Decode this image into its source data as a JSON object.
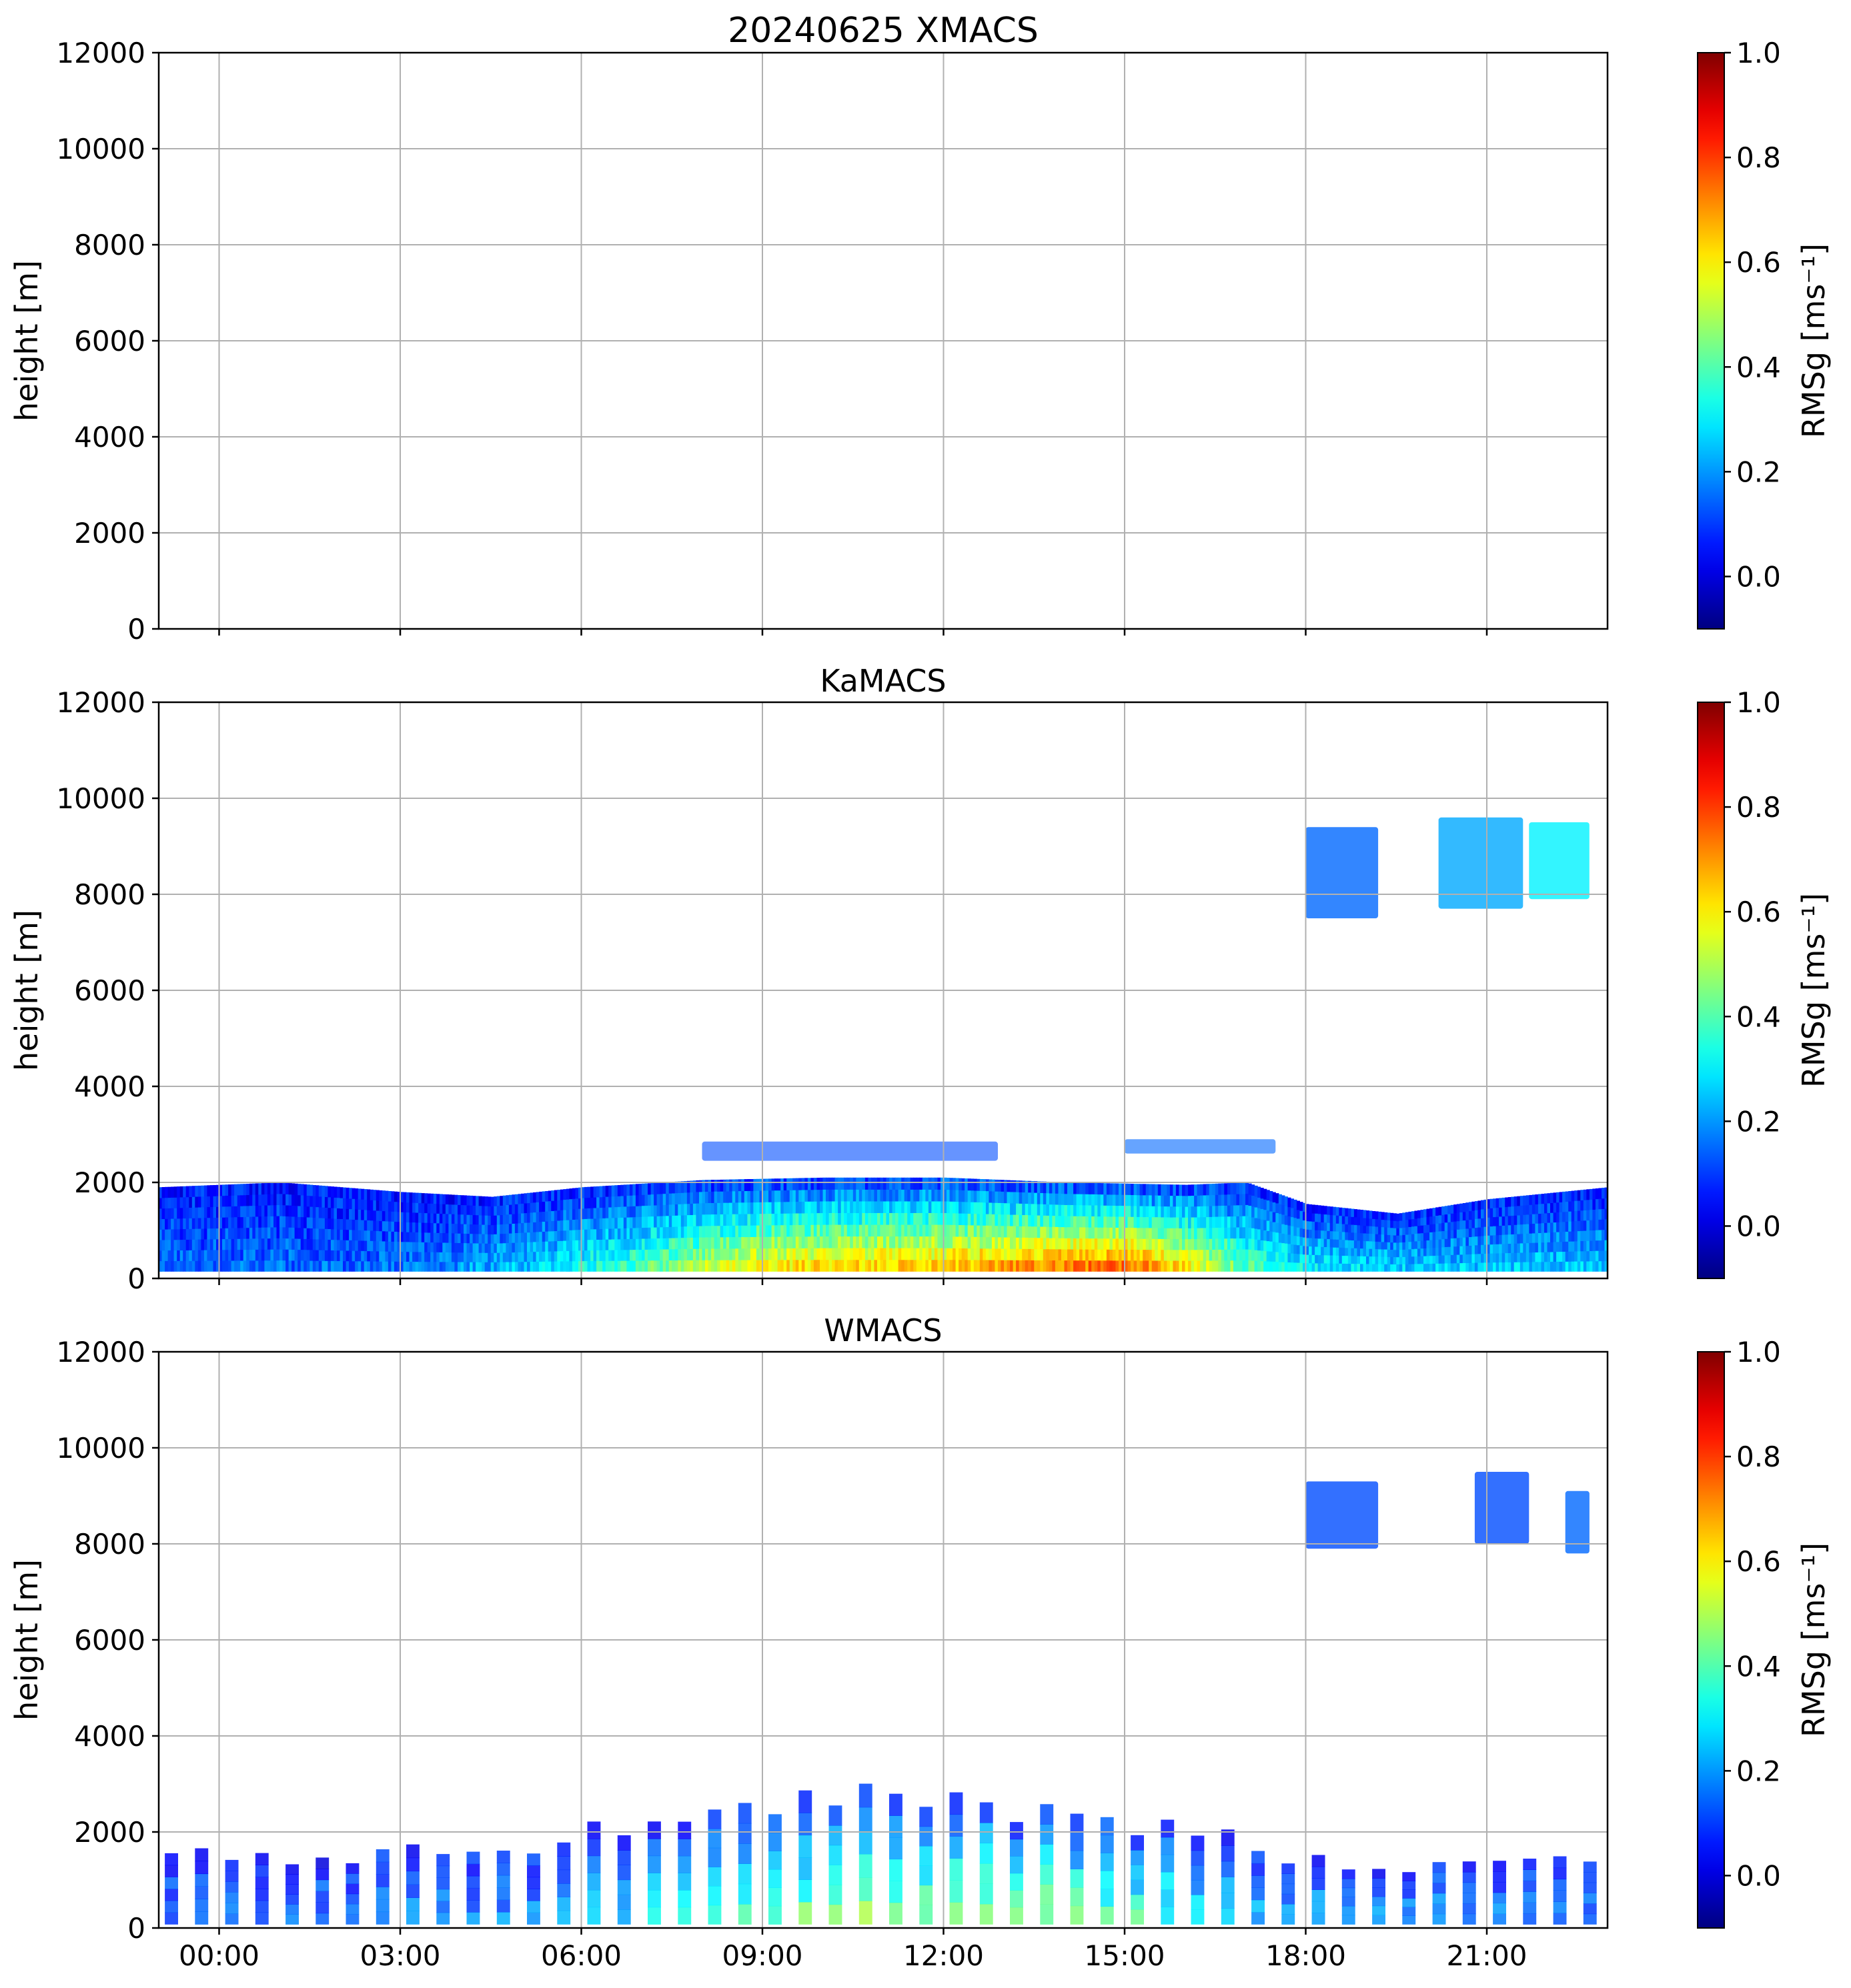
{
  "figure_title_date": "20240625",
  "chart_data": [
    {
      "type": "heatmap",
      "title": "20240625 XMACS",
      "ylabel": "height [m]",
      "xlim": [
        -1,
        23
      ],
      "ylim": [
        0,
        12000
      ],
      "x_ticks": [
        0,
        3,
        6,
        9,
        12,
        15,
        18,
        21
      ],
      "x_tick_labels": [],
      "y_ticks": [
        0,
        2000,
        4000,
        6000,
        8000,
        10000,
        12000
      ],
      "y_tick_labels": [
        "0",
        "2000",
        "4000",
        "6000",
        "8000",
        "10000",
        "12000"
      ],
      "grid": true,
      "colorbar": {
        "label": "RMSg [ms⁻¹]",
        "cmap": "jet",
        "range": [
          -0.1,
          1.0
        ],
        "ticks": [
          0.0,
          0.2,
          0.4,
          0.6,
          0.8,
          1.0
        ],
        "tick_labels": [
          "0.0",
          "0.2",
          "0.4",
          "0.6",
          "0.8",
          "1.0"
        ]
      },
      "echo_regions": []
    },
    {
      "type": "heatmap",
      "title": "KaMACS",
      "ylabel": "height [m]",
      "xlim": [
        -1,
        23
      ],
      "ylim": [
        0,
        12000
      ],
      "x_ticks": [
        0,
        3,
        6,
        9,
        12,
        15,
        18,
        21
      ],
      "x_tick_labels": [],
      "y_ticks": [
        0,
        2000,
        4000,
        6000,
        8000,
        10000,
        12000
      ],
      "y_tick_labels": [
        "0",
        "2000",
        "4000",
        "6000",
        "8000",
        "10000",
        "12000"
      ],
      "grid": true,
      "colorbar": {
        "label": "RMSg [ms⁻¹]",
        "cmap": "jet",
        "range": [
          -0.1,
          1.0
        ],
        "ticks": [
          0.0,
          0.2,
          0.4,
          0.6,
          0.8,
          1.0
        ],
        "tick_labels": [
          "0.0",
          "0.2",
          "0.4",
          "0.6",
          "0.8",
          "1.0"
        ]
      },
      "echo_regions": [
        {
          "kind": "boundary_layer",
          "x_start": -1.0,
          "x_end": 23.0,
          "top_profile": [
            [
              -1,
              1900
            ],
            [
              1,
              2000
            ],
            [
              3,
              1800
            ],
            [
              4.5,
              1700
            ],
            [
              6,
              1900
            ],
            [
              8,
              2050
            ],
            [
              10,
              2100
            ],
            [
              12,
              2100
            ],
            [
              14,
              2000
            ],
            [
              16,
              1950
            ],
            [
              17,
              2000
            ],
            [
              18,
              1550
            ],
            [
              19.5,
              1350
            ],
            [
              21,
              1650
            ],
            [
              23,
              1900
            ]
          ],
          "rmsg_profile": [
            [
              -1,
              0.1
            ],
            [
              3,
              0.1
            ],
            [
              5,
              0.2
            ],
            [
              7,
              0.35
            ],
            [
              9,
              0.55
            ],
            [
              12,
              0.6
            ],
            [
              15,
              0.7
            ],
            [
              16,
              0.55
            ],
            [
              17,
              0.35
            ],
            [
              18,
              0.25
            ],
            [
              20,
              0.2
            ],
            [
              23,
              0.2
            ]
          ]
        },
        {
          "kind": "elevated_layer",
          "x_start": 8.0,
          "x_end": 12.9,
          "y_bottom": 2450,
          "y_top": 2850,
          "rmsg": 0.12
        },
        {
          "kind": "elevated_layer",
          "x_start": 15.0,
          "x_end": 17.5,
          "y_bottom": 2600,
          "y_top": 2900,
          "rmsg": 0.15
        },
        {
          "kind": "cirrus",
          "x_start": 18.0,
          "x_end": 19.2,
          "y_bottom": 7500,
          "y_top": 9400,
          "rmsg": 0.15
        },
        {
          "kind": "cirrus",
          "x_start": 20.2,
          "x_end": 21.6,
          "y_bottom": 7700,
          "y_top": 9600,
          "rmsg": 0.22
        },
        {
          "kind": "cirrus",
          "x_start": 21.7,
          "x_end": 22.7,
          "y_bottom": 7900,
          "y_top": 9500,
          "rmsg": 0.3
        }
      ]
    },
    {
      "type": "heatmap",
      "title": "WMACS",
      "ylabel": "height [m]",
      "xlim": [
        -1,
        23
      ],
      "ylim": [
        0,
        12000
      ],
      "x_ticks": [
        0,
        3,
        6,
        9,
        12,
        15,
        18,
        21
      ],
      "x_tick_labels": [
        "00:00",
        "03:00",
        "06:00",
        "09:00",
        "12:00",
        "15:00",
        "18:00",
        "21:00"
      ],
      "y_ticks": [
        0,
        2000,
        4000,
        6000,
        8000,
        10000,
        12000
      ],
      "y_tick_labels": [
        "0",
        "2000",
        "4000",
        "6000",
        "8000",
        "10000",
        "12000"
      ],
      "grid": true,
      "colorbar": {
        "label": "RMSg [ms⁻¹]",
        "cmap": "jet",
        "range": [
          -0.1,
          1.0
        ],
        "ticks": [
          0.0,
          0.2,
          0.4,
          0.6,
          0.8,
          1.0
        ],
        "tick_labels": [
          "0.0",
          "0.2",
          "0.4",
          "0.6",
          "0.8",
          "1.0"
        ]
      },
      "echo_regions": [
        {
          "kind": "sampling_columns",
          "x_start": -1.0,
          "x_end": 23.0,
          "interval_h": 0.5,
          "top_profile": [
            [
              -1,
              1600
            ],
            [
              2,
              1500
            ],
            [
              5,
              1800
            ],
            [
              6,
              2000
            ],
            [
              8,
              2400
            ],
            [
              9,
              2700
            ],
            [
              11,
              2800
            ],
            [
              12,
              2600
            ],
            [
              14,
              2300
            ],
            [
              15,
              2200
            ],
            [
              17,
              1800
            ],
            [
              18,
              1400
            ],
            [
              20,
              1300
            ],
            [
              23,
              1500
            ]
          ],
          "rmsg_profile": [
            [
              -1,
              0.1
            ],
            [
              5,
              0.15
            ],
            [
              8,
              0.3
            ],
            [
              10,
              0.4
            ],
            [
              13,
              0.45
            ],
            [
              15,
              0.35
            ],
            [
              17,
              0.2
            ],
            [
              23,
              0.12
            ]
          ]
        },
        {
          "kind": "cirrus",
          "x_start": 18.0,
          "x_end": 19.2,
          "y_bottom": 7900,
          "y_top": 9300,
          "rmsg": 0.12
        },
        {
          "kind": "cirrus",
          "x_start": 20.8,
          "x_end": 21.7,
          "y_bottom": 8000,
          "y_top": 9500,
          "rmsg": 0.12
        },
        {
          "kind": "cirrus",
          "x_start": 22.3,
          "x_end": 22.7,
          "y_bottom": 7800,
          "y_top": 9100,
          "rmsg": 0.15
        }
      ]
    }
  ]
}
